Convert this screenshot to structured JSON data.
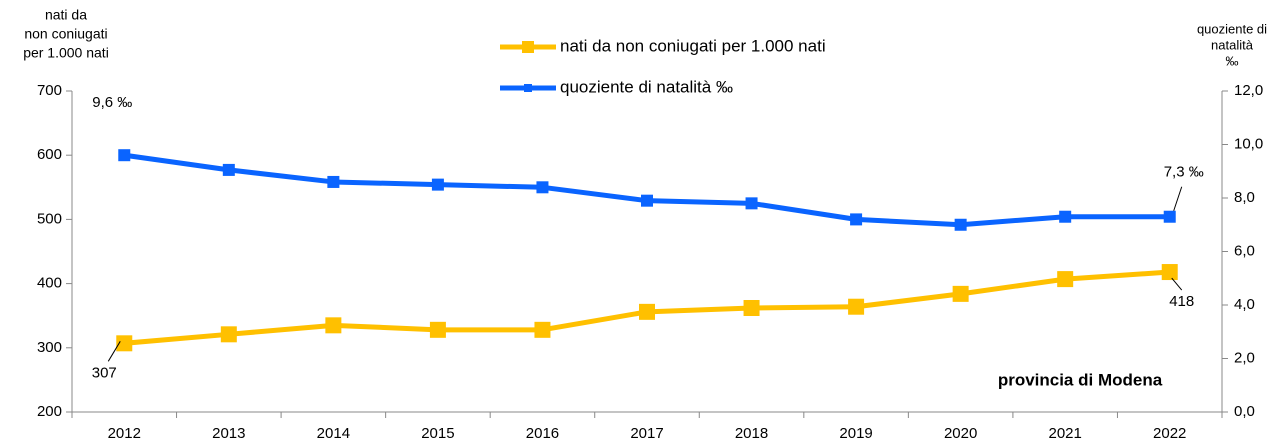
{
  "chart_data": {
    "type": "line",
    "ylabel": [
      "nati da",
      "non coniugati",
      "per 1.000 nati"
    ],
    "y2label": [
      "quoziente di",
      "natalità",
      "‰"
    ],
    "annotation": "provincia di Modena",
    "categories": [
      "2012",
      "2013",
      "2014",
      "2015",
      "2016",
      "2017",
      "2018",
      "2019",
      "2020",
      "2021",
      "2022"
    ],
    "series": [
      {
        "name": "nati da non coniugati per 1.000 nati",
        "color": "#FFC000",
        "values": [
          307,
          321,
          335,
          328,
          328,
          356,
          362,
          364,
          384,
          407,
          418
        ],
        "value_labels": [
          "307",
          null,
          null,
          null,
          null,
          null,
          null,
          null,
          null,
          null,
          "418"
        ]
      },
      {
        "name": "quoziente di natalità ‰",
        "color": "#0A64FF",
        "axis": "y2",
        "values": [
          9.6,
          9.05,
          8.6,
          8.5,
          8.4,
          7.9,
          7.8,
          7.2,
          7.0,
          7.3,
          7.3
        ],
        "value_labels": [
          "9,6 ‰",
          null,
          null,
          null,
          null,
          null,
          null,
          null,
          null,
          null,
          "7,3 ‰"
        ]
      }
    ],
    "ylim": [
      200,
      700
    ],
    "yticks": [
      200,
      300,
      400,
      500,
      600,
      700
    ],
    "y2lim": [
      0,
      12
    ],
    "y2ticks": [
      {
        "value": 0,
        "label": "0,0"
      },
      {
        "value": 2,
        "label": "2,0"
      },
      {
        "value": 4,
        "label": "4,0"
      },
      {
        "value": 6,
        "label": "6,0"
      },
      {
        "value": 8,
        "label": "8,0"
      },
      {
        "value": 10,
        "label": "10,0"
      },
      {
        "value": 12,
        "label": "12,0"
      }
    ],
    "grid": false
  }
}
